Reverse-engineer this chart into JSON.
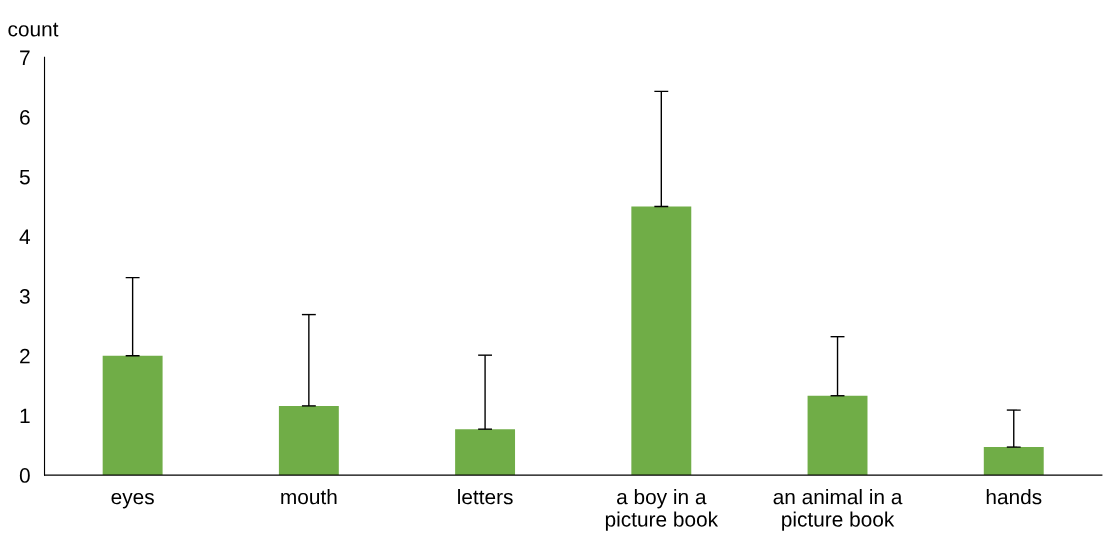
{
  "chart_data": {
    "type": "bar",
    "ylabel": "count",
    "categories": [
      "eyes",
      "mouth",
      "letters",
      "a boy in a\npicture book",
      "an animal in a\npicture book",
      "hands"
    ],
    "values": [
      2.0,
      1.16,
      0.77,
      4.5,
      1.33,
      0.47
    ],
    "errors": [
      [
        2.0,
        3.31
      ],
      [
        1.16,
        2.69
      ],
      [
        0.77,
        2.01
      ],
      [
        4.5,
        6.43
      ],
      [
        1.33,
        2.32
      ],
      [
        0.47,
        1.09
      ]
    ],
    "color": "#70ad47",
    "ylim": [
      0,
      7
    ],
    "yticks": [
      0,
      1,
      2,
      3,
      4,
      5,
      6,
      7
    ],
    "grid": false,
    "legend": false
  }
}
